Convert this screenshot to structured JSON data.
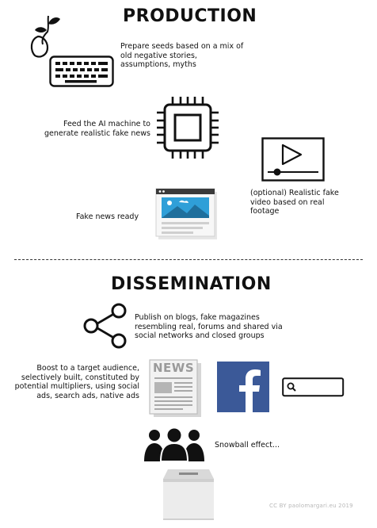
{
  "production": {
    "heading": "PRODUCTION",
    "steps": {
      "seeds": "Prepare seeds based on a mix of old negative stories, assumptions, myths",
      "ai": "Feed the AI machine to generate realistic fake news",
      "video": "(optional) Realistic fake video based on real footage",
      "ready": "Fake news ready"
    }
  },
  "dissemination": {
    "heading": "DISSEMINATION",
    "steps": {
      "publish": "Publish on blogs, fake magazines resembling real, forums and shared via social networks and closed groups",
      "boost": "Boost to a target audience, selectively built, constituted by potential multipliers, using social ads, search ads, native ads",
      "snowball": "Snowball effect..."
    },
    "news_label": "NEWS"
  },
  "credit": "CC BY paolomargari.eu 2019",
  "icons": {
    "seed": "seedling-icon",
    "keyboard": "keyboard-icon",
    "chip": "cpu-chip-icon",
    "video": "video-player-icon",
    "browser": "browser-window-icon",
    "share": "share-icon",
    "newspaper": "newspaper-icon",
    "facebook": "facebook-icon",
    "search": "search-bar-icon",
    "crowd": "crowd-icon",
    "ballot": "ballot-box-icon"
  },
  "colors": {
    "facebook": "#3b5998",
    "sky": "#2f9fd8",
    "mountain": "#1f6f9c",
    "ink": "#111111",
    "credit": "#b8b8b8"
  }
}
